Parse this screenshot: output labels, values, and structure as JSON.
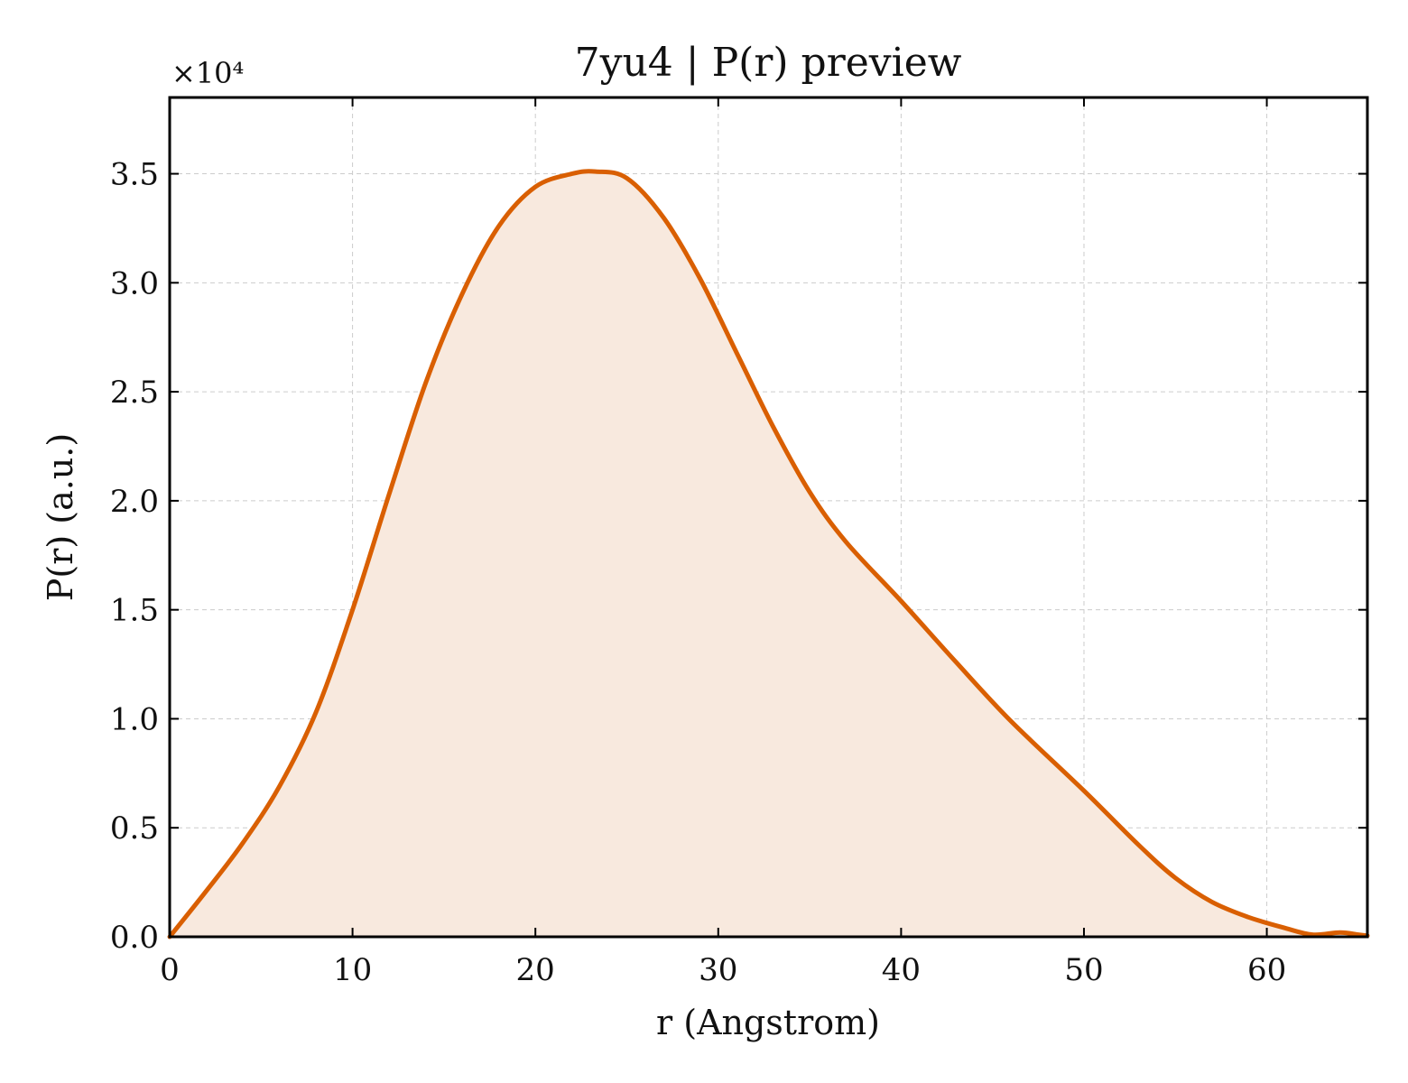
{
  "chart_data": {
    "type": "area",
    "title": "7yu4 | P(r) preview",
    "xlabel": "r (Angstrom)",
    "ylabel": "P(r) (a.u.)",
    "y_offset_label": "×10⁴",
    "y_scale_factor": 10000,
    "xlim": [
      0,
      65.5
    ],
    "ylim": [
      0,
      38500
    ],
    "xticks": [
      0,
      10,
      20,
      30,
      40,
      50,
      60
    ],
    "xtick_labels": [
      "0",
      "10",
      "20",
      "30",
      "40",
      "50",
      "60"
    ],
    "yticks": [
      0,
      5000,
      10000,
      15000,
      20000,
      25000,
      30000,
      35000
    ],
    "ytick_labels": [
      "0.0",
      "0.5",
      "1.0",
      "1.5",
      "2.0",
      "2.5",
      "3.0",
      "3.5"
    ],
    "grid": true,
    "line_color": "#d95f02",
    "fill_color": "#f8e9de",
    "series": [
      {
        "x": [
          0,
          2,
          4,
          6,
          8,
          10,
          12,
          14,
          16,
          18,
          20,
          22,
          23.3,
          25,
          27,
          29,
          31,
          33,
          35,
          37,
          40,
          43,
          46,
          50,
          53,
          55,
          57,
          59,
          61,
          62.5,
          64,
          65,
          65.5
        ],
        "y": [
          0,
          2100,
          4300,
          6900,
          10300,
          15000,
          20300,
          25400,
          29500,
          32600,
          34400,
          35000,
          35100,
          34800,
          33000,
          30200,
          26800,
          23400,
          20400,
          18100,
          15400,
          12600,
          9900,
          6700,
          4200,
          2700,
          1600,
          900,
          400,
          100,
          200,
          100,
          50
        ]
      }
    ]
  }
}
